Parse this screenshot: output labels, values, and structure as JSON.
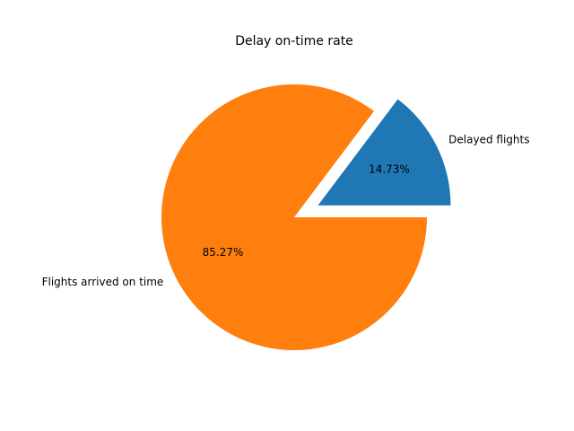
{
  "chart_data": {
    "type": "pie",
    "title": "Delay on-time rate",
    "slices": [
      {
        "label": "Delayed flights",
        "value": 14.73,
        "pct_label": "14.73%",
        "color": "#1f77b4",
        "explode": 0.2
      },
      {
        "label": "Flights arrived on time",
        "value": 85.27,
        "pct_label": "85.27%",
        "color": "#ff7f0e",
        "explode": 0
      }
    ],
    "start_angle": 0,
    "direction": "counterclockwise",
    "legend": "none"
  }
}
